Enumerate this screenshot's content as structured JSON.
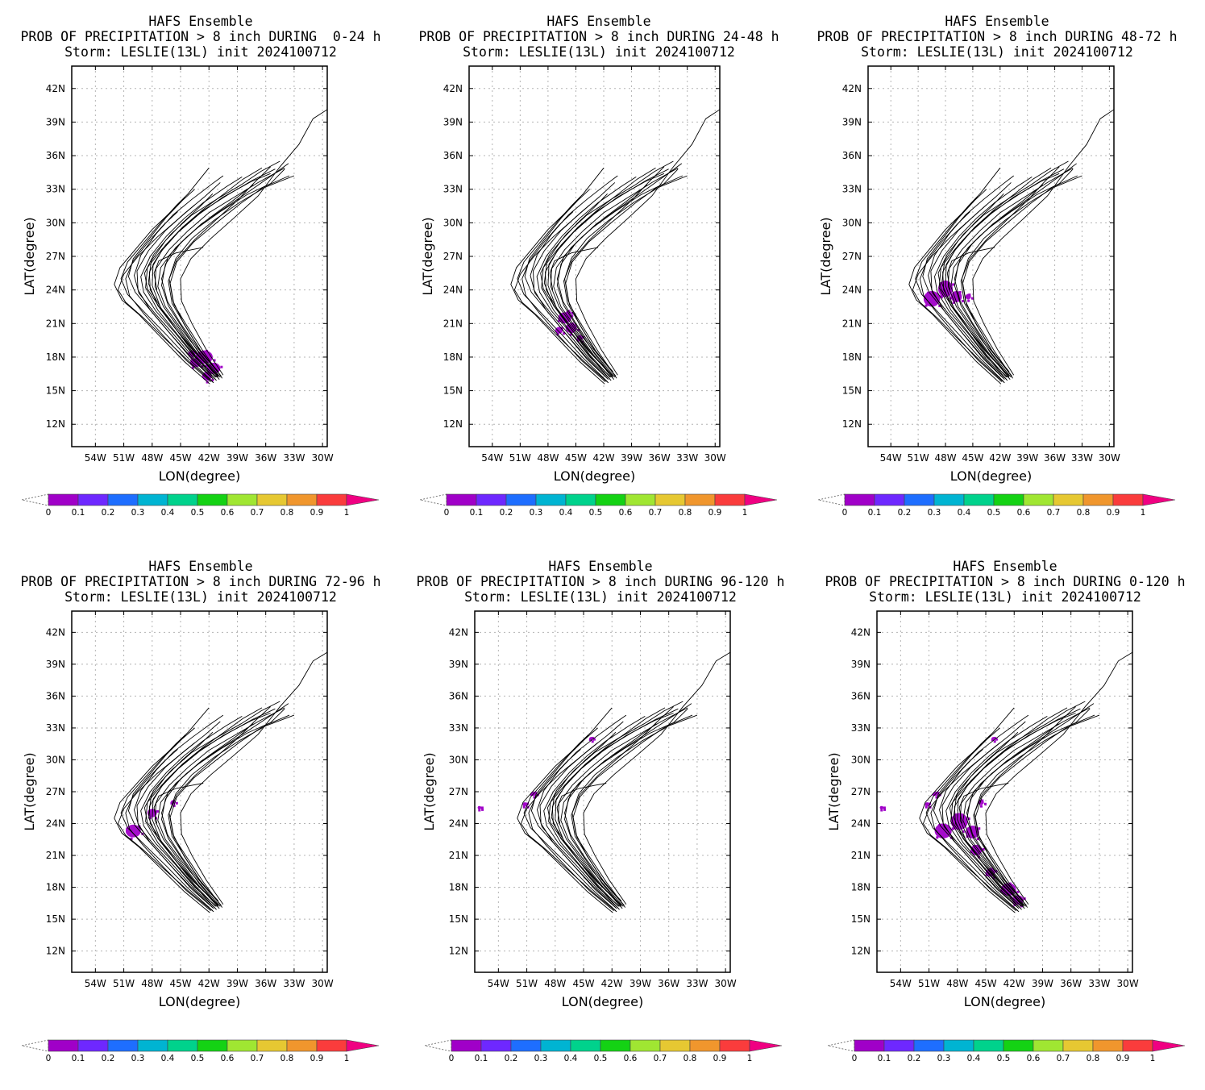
{
  "figure": {
    "panels": [
      {
        "title1": "HAFS Ensemble",
        "title2": "PROB OF PRECIPITATION > 8 inch DURING  0-24 h",
        "title3": "Storm: LESLIE(13L) init 2024100712",
        "blobs": "p1"
      },
      {
        "title1": "HAFS Ensemble",
        "title2": "PROB OF PRECIPITATION > 8 inch DURING 24-48 h",
        "title3": "Storm: LESLIE(13L) init 2024100712",
        "blobs": "p2"
      },
      {
        "title1": "HAFS Ensemble",
        "title2": "PROB OF PRECIPITATION > 8 inch DURING 48-72 h",
        "title3": "Storm: LESLIE(13L) init 2024100712",
        "blobs": "p3"
      },
      {
        "title1": "HAFS Ensemble",
        "title2": "PROB OF PRECIPITATION > 8 inch DURING 72-96 h",
        "title3": "Storm: LESLIE(13L) init 2024100712",
        "blobs": "p4"
      },
      {
        "title1": "HAFS Ensemble",
        "title2": "PROB OF PRECIPITATION > 8 inch DURING 96-120 h",
        "title3": "Storm: LESLIE(13L) init 2024100712",
        "blobs": "p5"
      },
      {
        "title1": "HAFS Ensemble",
        "title2": "PROB OF PRECIPITATION > 8 inch DURING 0-120 h",
        "title3": "Storm: LESLIE(13L) init 2024100712",
        "blobs": "p6"
      }
    ],
    "x_label": "LON(degree)",
    "y_label": "LAT(degree)",
    "lon_ticks": [
      "54W",
      "51W",
      "48W",
      "45W",
      "42W",
      "39W",
      "36W",
      "33W",
      "30W"
    ],
    "lat_ticks": [
      "12N",
      "15N",
      "18N",
      "21N",
      "24N",
      "27N",
      "30N",
      "33N",
      "36N",
      "39N",
      "42N"
    ],
    "colorbar": {
      "labels": [
        "0",
        "0.1",
        "0.2",
        "0.3",
        "0.4",
        "0.5",
        "0.6",
        "0.7",
        "0.8",
        "0.9",
        "1"
      ],
      "colors": [
        "#a000c8",
        "#6e28ff",
        "#1e6eff",
        "#00b4d2",
        "#00d28c",
        "#14d214",
        "#a0e632",
        "#e6c832",
        "#f0962d",
        "#fa3c3c"
      ],
      "over_color": "#f00082",
      "under_color": "#ffffff"
    }
  },
  "chart_data": {
    "type": "map",
    "lon_range": [
      -56.5,
      -29.5
    ],
    "lat_range": [
      10,
      44
    ],
    "tracks": [
      [
        [
          -41.5,
          16.0
        ],
        [
          -43.8,
          17.8
        ],
        [
          -46.0,
          20.0
        ],
        [
          -48.0,
          22.0
        ],
        [
          -49.8,
          23.8
        ],
        [
          -50.5,
          25.2
        ],
        [
          -50.0,
          26.8
        ],
        [
          -48.3,
          28.6
        ],
        [
          -46.5,
          30.5
        ],
        [
          -44.8,
          32.0
        ],
        [
          -43.5,
          33.0
        ]
      ],
      [
        [
          -41.2,
          16.2
        ],
        [
          -43.5,
          18.0
        ],
        [
          -45.6,
          20.2
        ],
        [
          -47.6,
          22.1
        ],
        [
          -48.9,
          23.8
        ],
        [
          -49.2,
          25.2
        ],
        [
          -48.2,
          27.0
        ],
        [
          -46.5,
          28.8
        ],
        [
          -44.6,
          30.4
        ],
        [
          -42.6,
          31.8
        ],
        [
          -40.2,
          33.2
        ],
        [
          -38.5,
          34.1
        ]
      ],
      [
        [
          -41.0,
          16.3
        ],
        [
          -43.2,
          18.2
        ],
        [
          -45.2,
          20.4
        ],
        [
          -47.0,
          22.3
        ],
        [
          -48.2,
          24.0
        ],
        [
          -48.3,
          25.6
        ],
        [
          -47.0,
          27.5
        ],
        [
          -45.2,
          29.2
        ],
        [
          -43.0,
          30.8
        ],
        [
          -40.5,
          32.3
        ],
        [
          -37.5,
          33.7
        ],
        [
          -35.5,
          34.4
        ]
      ],
      [
        [
          -40.8,
          16.2
        ],
        [
          -43.0,
          18.4
        ],
        [
          -45.0,
          20.6
        ],
        [
          -46.6,
          22.5
        ],
        [
          -47.4,
          24.3
        ],
        [
          -47.1,
          26.0
        ],
        [
          -45.5,
          27.8
        ],
        [
          -43.3,
          29.5
        ],
        [
          -40.8,
          31.0
        ],
        [
          -38.0,
          32.5
        ],
        [
          -35.5,
          33.5
        ],
        [
          -34.0,
          34.8
        ]
      ],
      [
        [
          -40.6,
          16.1
        ],
        [
          -42.6,
          18.5
        ],
        [
          -44.4,
          20.9
        ],
        [
          -45.7,
          22.7
        ],
        [
          -46.1,
          24.6
        ],
        [
          -45.4,
          26.5
        ],
        [
          -43.6,
          28.3
        ],
        [
          -41.2,
          30.0
        ],
        [
          -38.7,
          31.7
        ],
        [
          -36.2,
          33.2
        ],
        [
          -33.5,
          34.2
        ]
      ],
      [
        [
          -41.6,
          15.8
        ],
        [
          -44.2,
          17.9
        ],
        [
          -46.5,
          20.0
        ],
        [
          -48.8,
          22.0
        ],
        [
          -50.6,
          23.6
        ],
        [
          -51.3,
          25.0
        ],
        [
          -50.6,
          26.5
        ],
        [
          -48.9,
          28.2
        ],
        [
          -47.0,
          30.1
        ],
        [
          -45.5,
          31.5
        ],
        [
          -44.2,
          32.6
        ],
        [
          -42.0,
          34.9
        ]
      ],
      [
        [
          -40.5,
          16.4
        ],
        [
          -42.3,
          18.7
        ],
        [
          -43.8,
          21.0
        ],
        [
          -44.9,
          23.0
        ],
        [
          -45.0,
          25.0
        ],
        [
          -43.9,
          26.8
        ],
        [
          -41.8,
          28.6
        ],
        [
          -39.4,
          30.4
        ],
        [
          -36.8,
          32.4
        ],
        [
          -34.5,
          35.0
        ],
        [
          -32.5,
          37.0
        ],
        [
          -31.0,
          39.3
        ],
        [
          -28.8,
          40.5
        ]
      ],
      [
        [
          -41.3,
          16.0
        ],
        [
          -43.6,
          17.9
        ],
        [
          -45.8,
          20.1
        ],
        [
          -47.8,
          22.0
        ],
        [
          -49.4,
          23.7
        ],
        [
          -49.9,
          25.3
        ],
        [
          -49.2,
          27.1
        ],
        [
          -47.6,
          29.0
        ],
        [
          -45.8,
          30.7
        ],
        [
          -43.8,
          32.1
        ],
        [
          -41.8,
          33.4
        ],
        [
          -40.5,
          34.2
        ]
      ],
      [
        [
          -41.1,
          16.4
        ],
        [
          -43.3,
          18.3
        ],
        [
          -45.3,
          20.3
        ],
        [
          -47.2,
          22.4
        ],
        [
          -48.5,
          24.1
        ],
        [
          -48.8,
          25.5
        ],
        [
          -47.8,
          27.2
        ],
        [
          -46.0,
          29.0
        ],
        [
          -43.8,
          30.7
        ],
        [
          -41.2,
          32.1
        ],
        [
          -38.6,
          33.4
        ],
        [
          -36.5,
          34.6
        ],
        [
          -34.5,
          35.5
        ]
      ],
      [
        [
          -41.9,
          15.6
        ],
        [
          -44.6,
          17.6
        ],
        [
          -47.0,
          19.7
        ],
        [
          -49.4,
          21.8
        ],
        [
          -51.2,
          23.1
        ],
        [
          -52.0,
          24.5
        ],
        [
          -51.4,
          26.0
        ],
        [
          -49.8,
          27.6
        ],
        [
          -48.0,
          29.4
        ],
        [
          -46.0,
          31.0
        ],
        [
          -44.5,
          32.3
        ]
      ],
      [
        [
          -40.9,
          16.0
        ],
        [
          -43.1,
          18.2
        ],
        [
          -45.1,
          20.5
        ],
        [
          -46.8,
          22.5
        ],
        [
          -47.7,
          24.3
        ],
        [
          -47.6,
          25.9
        ],
        [
          -46.2,
          27.6
        ],
        [
          -44.2,
          29.3
        ],
        [
          -42.0,
          30.9
        ],
        [
          -39.5,
          32.2
        ],
        [
          -36.8,
          33.6
        ],
        [
          -34.0,
          34.9
        ]
      ],
      [
        [
          -41.4,
          16.6
        ],
        [
          -43.7,
          18.6
        ],
        [
          -45.6,
          20.6
        ],
        [
          -47.4,
          22.6
        ],
        [
          -48.4,
          24.6
        ],
        [
          -48.1,
          26.6
        ],
        [
          -46.6,
          28.4
        ],
        [
          -44.8,
          30.0
        ],
        [
          -43.0,
          31.4
        ],
        [
          -41.6,
          32.6
        ]
      ],
      [
        [
          -41.0,
          16.2
        ],
        [
          -43.0,
          18.3
        ],
        [
          -44.8,
          20.6
        ],
        [
          -46.3,
          22.6
        ],
        [
          -47.0,
          24.4
        ],
        [
          -46.6,
          26.3
        ],
        [
          -45.0,
          28.2
        ],
        [
          -42.8,
          29.9
        ],
        [
          -40.2,
          31.4
        ],
        [
          -37.6,
          32.9
        ],
        [
          -35.4,
          34.2
        ],
        [
          -33.6,
          35.3
        ]
      ],
      [
        [
          -40.7,
          16.3
        ],
        [
          -42.8,
          18.4
        ],
        [
          -44.5,
          20.8
        ],
        [
          -45.9,
          22.8
        ],
        [
          -46.3,
          24.8
        ],
        [
          -45.4,
          26.7
        ],
        [
          -43.5,
          28.5
        ],
        [
          -41.2,
          30.3
        ],
        [
          -39.0,
          32.0
        ],
        [
          -37.2,
          33.6
        ],
        [
          -35.5,
          35.0
        ]
      ],
      [
        [
          -41.6,
          16.1
        ],
        [
          -44.0,
          18.1
        ],
        [
          -46.2,
          20.2
        ],
        [
          -48.2,
          22.2
        ],
        [
          -49.5,
          24.0
        ],
        [
          -49.6,
          25.7
        ],
        [
          -48.4,
          27.5
        ],
        [
          -46.6,
          29.3
        ],
        [
          -44.5,
          30.9
        ],
        [
          -42.5,
          32.3
        ],
        [
          -40.8,
          33.6
        ]
      ],
      [
        [
          -41.2,
          15.9
        ],
        [
          -43.4,
          18.0
        ],
        [
          -45.5,
          20.2
        ],
        [
          -47.4,
          22.2
        ],
        [
          -48.7,
          24.2
        ],
        [
          -48.5,
          26.0
        ],
        [
          -47.0,
          27.6
        ],
        [
          -45.0,
          29.4
        ],
        [
          -42.8,
          31.0
        ],
        [
          -40.0,
          32.5
        ],
        [
          -37.4,
          33.8
        ],
        [
          -35.0,
          34.8
        ]
      ],
      [
        [
          -41.0,
          16.7
        ],
        [
          -43.2,
          18.8
        ],
        [
          -45.0,
          21.0
        ],
        [
          -46.4,
          23.0
        ],
        [
          -47.0,
          25.0
        ],
        [
          -46.3,
          27.0
        ],
        [
          -44.4,
          28.7
        ],
        [
          -42.0,
          30.4
        ],
        [
          -39.6,
          31.9
        ],
        [
          -37.3,
          33.4
        ]
      ],
      [
        [
          -41.5,
          15.7
        ],
        [
          -44.1,
          17.6
        ],
        [
          -46.6,
          19.6
        ],
        [
          -48.9,
          21.5
        ],
        [
          -50.8,
          22.9
        ],
        [
          -51.6,
          24.0
        ],
        [
          -51.0,
          25.4
        ],
        [
          -49.5,
          27.0
        ],
        [
          -47.5,
          28.7
        ],
        [
          -45.3,
          30.3
        ],
        [
          -43.5,
          31.6
        ]
      ],
      [
        [
          -40.9,
          16.5
        ],
        [
          -42.9,
          18.6
        ],
        [
          -44.6,
          20.9
        ],
        [
          -45.8,
          23.0
        ],
        [
          -46.2,
          25.0
        ],
        [
          -45.5,
          26.8
        ],
        [
          -43.8,
          28.6
        ],
        [
          -41.5,
          30.2
        ],
        [
          -38.8,
          31.8
        ],
        [
          -36.0,
          33.2
        ],
        [
          -33.0,
          34.2
        ]
      ],
      [
        [
          -41.3,
          16.2
        ],
        [
          -43.5,
          18.2
        ],
        [
          -45.4,
          20.4
        ],
        [
          -47.1,
          22.4
        ],
        [
          -48.0,
          24.4
        ],
        [
          -47.9,
          26.3
        ],
        [
          -46.6,
          28.0
        ],
        [
          -44.8,
          29.6
        ],
        [
          -42.6,
          31.2
        ],
        [
          -40.4,
          32.6
        ],
        [
          -38.4,
          33.9
        ],
        [
          -36.4,
          34.9
        ]
      ],
      [
        [
          -47.5,
          24.0
        ],
        [
          -47.8,
          25.5
        ],
        [
          -47.3,
          26.6
        ],
        [
          -45.5,
          27.3
        ],
        [
          -43.8,
          27.6
        ],
        [
          -42.6,
          27.8
        ]
      ],
      [
        [
          -41.8,
          15.8
        ],
        [
          -44.4,
          17.7
        ],
        [
          -46.7,
          19.8
        ],
        [
          -48.9,
          21.9
        ],
        [
          -50.4,
          23.5
        ],
        [
          -50.8,
          25.0
        ],
        [
          -50.0,
          26.6
        ],
        [
          -48.4,
          28.3
        ],
        [
          -46.8,
          29.8
        ],
        [
          -45.3,
          31.0
        ]
      ]
    ],
    "probability_blobs": {
      "p1": [
        [
          -42.5,
          18.0,
          1.8,
          1.2
        ],
        [
          -43.4,
          17.5,
          1.2,
          0.8
        ],
        [
          -41.5,
          17.0,
          1.4,
          1.0
        ],
        [
          -42.2,
          16.3,
          1.0,
          0.8
        ],
        [
          -43.8,
          18.3,
          0.8,
          0.6
        ]
      ],
      "p2": [
        [
          -46.2,
          21.5,
          1.4,
          1.0
        ],
        [
          -45.5,
          20.6,
          1.2,
          0.9
        ],
        [
          -46.8,
          20.4,
          0.8,
          0.6
        ],
        [
          -44.6,
          19.7,
          0.6,
          0.5
        ],
        [
          -45.8,
          22.0,
          0.5,
          0.4
        ]
      ],
      "p3": [
        [
          -49.5,
          23.2,
          1.8,
          1.4
        ],
        [
          -48.0,
          24.1,
          1.6,
          1.5
        ],
        [
          -46.8,
          23.4,
          1.2,
          1.0
        ],
        [
          -45.5,
          23.4,
          0.6,
          0.5
        ]
      ],
      "p4": [
        [
          -50.0,
          23.3,
          1.6,
          1.2
        ],
        [
          -48.0,
          25.0,
          1.0,
          0.8
        ],
        [
          -45.8,
          26.0,
          0.5,
          0.4
        ]
      ],
      "p5": [
        [
          -50.3,
          26.8,
          0.6,
          0.4
        ],
        [
          -51.2,
          25.8,
          0.5,
          0.4
        ],
        [
          -56.0,
          25.5,
          0.4,
          0.3
        ],
        [
          -44.2,
          32.0,
          0.4,
          0.3
        ]
      ],
      "p6": [
        [
          -49.5,
          23.3,
          1.8,
          1.4
        ],
        [
          -47.8,
          24.2,
          1.8,
          1.6
        ],
        [
          -46.4,
          23.2,
          1.4,
          1.2
        ],
        [
          -46.0,
          21.5,
          1.2,
          1.0
        ],
        [
          -44.5,
          19.4,
          1.0,
          0.8
        ],
        [
          -42.6,
          17.8,
          1.6,
          1.2
        ],
        [
          -41.6,
          16.8,
          1.2,
          0.9
        ],
        [
          -50.3,
          26.8,
          0.6,
          0.4
        ],
        [
          -51.2,
          25.8,
          0.5,
          0.4
        ],
        [
          -56.0,
          25.5,
          0.4,
          0.3
        ],
        [
          -44.2,
          32.0,
          0.4,
          0.3
        ],
        [
          -45.5,
          26.0,
          0.6,
          0.5
        ]
      ]
    },
    "blob_color": "#a000c8"
  }
}
